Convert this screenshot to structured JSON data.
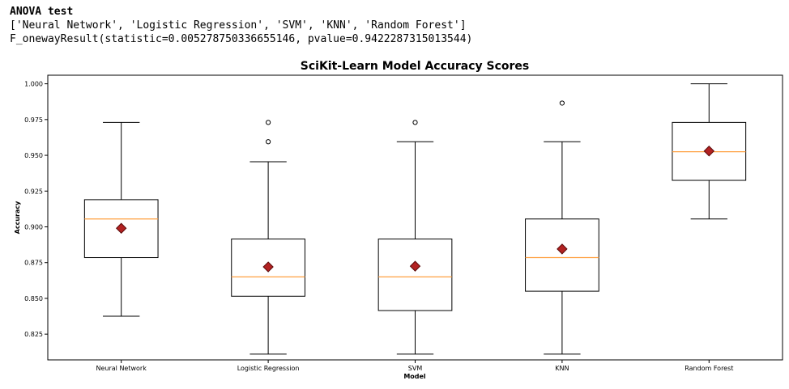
{
  "output": {
    "heading": "ANOVA test",
    "line1": "['Neural Network', 'Logistic Regression', 'SVM', 'KNN', 'Random Forest']",
    "line2": "F_onewayResult(statistic=0.005278750336655146, pvalue=0.9422287315013544)"
  },
  "colors": {
    "box": "#000000",
    "median": "#ffa040",
    "mean_fill": "#b22222",
    "mean_edge": "#5a0a0a",
    "axis": "#000000"
  },
  "chart_data": {
    "type": "box",
    "title": "SciKit-Learn Model Accuracy Scores",
    "xlabel": "Model",
    "ylabel": "Accuracy",
    "ylim": [
      0.807,
      1.006
    ],
    "yticks": [
      0.825,
      0.85,
      0.875,
      0.9,
      0.925,
      0.95,
      0.975,
      1.0
    ],
    "ytick_labels": [
      "0.825",
      "0.850",
      "0.875",
      "0.900",
      "0.925",
      "0.950",
      "0.975",
      "1.000"
    ],
    "grid": false,
    "categories": [
      "Neural Network",
      "Logistic Regression",
      "SVM",
      "KNN",
      "Random Forest"
    ],
    "boxes": [
      {
        "whisker_low": 0.8375,
        "q1": 0.8785,
        "median": 0.9055,
        "q3": 0.919,
        "whisker_high": 0.973,
        "mean": 0.899,
        "outliers": []
      },
      {
        "whisker_low": 0.811,
        "q1": 0.8515,
        "median": 0.865,
        "q3": 0.8915,
        "whisker_high": 0.9455,
        "mean": 0.872,
        "outliers": [
          0.973,
          0.9595
        ]
      },
      {
        "whisker_low": 0.811,
        "q1": 0.8415,
        "median": 0.865,
        "q3": 0.8915,
        "whisker_high": 0.9595,
        "mean": 0.8725,
        "outliers": [
          0.973
        ]
      },
      {
        "whisker_low": 0.811,
        "q1": 0.855,
        "median": 0.8785,
        "q3": 0.9055,
        "whisker_high": 0.9595,
        "mean": 0.8845,
        "outliers": [
          0.9865
        ]
      },
      {
        "whisker_low": 0.9055,
        "q1": 0.9325,
        "median": 0.9525,
        "q3": 0.973,
        "whisker_high": 1.0,
        "mean": 0.953,
        "outliers": []
      }
    ]
  }
}
